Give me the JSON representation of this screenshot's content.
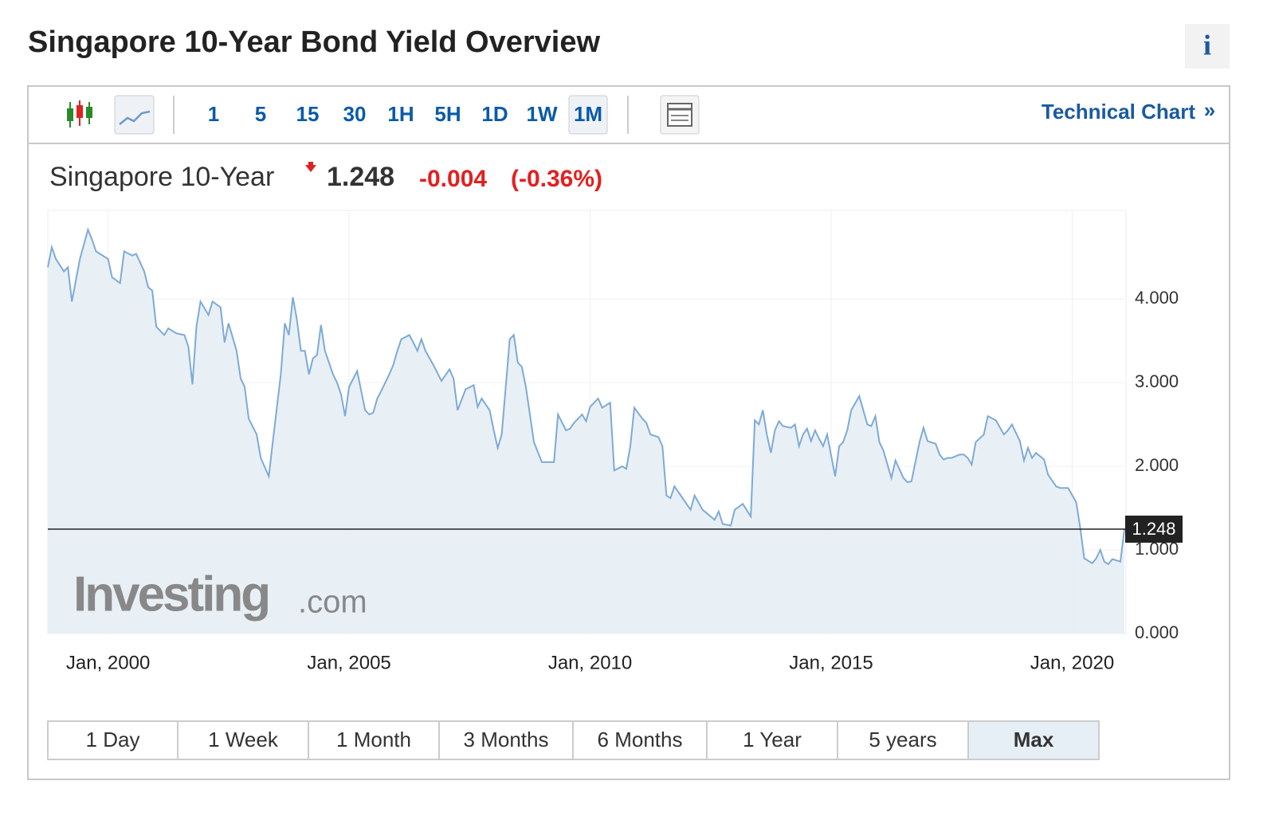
{
  "title": "Singapore 10-Year Bond Yield Overview",
  "info_button": "i",
  "toolbar": {
    "intervals": [
      "1",
      "5",
      "15",
      "30",
      "1H",
      "5H",
      "1D",
      "1W",
      "1M"
    ],
    "active": "1M",
    "link": "Technical Chart",
    "link_arrow": "»"
  },
  "quote": {
    "name": "Singapore 10-Year",
    "price": 1.248,
    "change": -0.004,
    "change_percent": "(-0.36%)"
  },
  "watermark": [
    "Investing",
    ".com"
  ],
  "ranges": {
    "buttons": [
      "1 Day",
      "1 Week",
      "1 Month",
      "3 Months",
      "6 Months",
      "1 Year",
      "5 years",
      "Max"
    ],
    "active": "Max"
  },
  "chart_data": {
    "type": "area",
    "color": "#7eaad6",
    "fill": "#e6eef5",
    "grid": true,
    "x": [
      "1998-10",
      "1998-11",
      "1998-12",
      "1999-02",
      "1999-03",
      "1999-04",
      "1999-06",
      "1999-08",
      "1999-09",
      "1999-10",
      "1999-11",
      "2000-01",
      "2000-02",
      "2000-04",
      "2000-05",
      "2000-07",
      "2000-08",
      "2000-10",
      "2000-11",
      "2000-12",
      "2001-01",
      "2001-03",
      "2001-04",
      "2001-06",
      "2001-08",
      "2001-09",
      "2001-10",
      "2001-11",
      "2001-12",
      "2002-02",
      "2002-03",
      "2002-05",
      "2002-06",
      "2002-07",
      "2002-09",
      "2002-10",
      "2002-11",
      "2002-12",
      "2003-02",
      "2003-03",
      "2003-05",
      "2003-06",
      "2003-08",
      "2003-09",
      "2003-10",
      "2003-11",
      "2003-12",
      "2004-01",
      "2004-02",
      "2004-03",
      "2004-04",
      "2004-05",
      "2004-06",
      "2004-07",
      "2004-09",
      "2004-10",
      "2004-11",
      "2004-12",
      "2005-01",
      "2005-03",
      "2005-05",
      "2005-06",
      "2005-07",
      "2005-08",
      "2005-09",
      "2005-11",
      "2005-12",
      "2006-01",
      "2006-02",
      "2006-04",
      "2006-05",
      "2006-06",
      "2006-07",
      "2006-08",
      "2006-10",
      "2006-12",
      "2007-02",
      "2007-03",
      "2007-04",
      "2007-06",
      "2007-08",
      "2007-09",
      "2007-10",
      "2007-12",
      "2008-01",
      "2008-02",
      "2008-03",
      "2008-05",
      "2008-06",
      "2008-07",
      "2008-08",
      "2008-09",
      "2008-11",
      "2009-01",
      "2009-02",
      "2009-04",
      "2009-05",
      "2009-07",
      "2009-08",
      "2009-09",
      "2009-11",
      "2009-12",
      "2010-01",
      "2010-03",
      "2010-04",
      "2010-06",
      "2010-07",
      "2010-09",
      "2010-10",
      "2010-11",
      "2010-12",
      "2011-02",
      "2011-03",
      "2011-04",
      "2011-06",
      "2011-07",
      "2011-08",
      "2011-09",
      "2011-10",
      "2011-12",
      "2012-02",
      "2012-03",
      "2012-05",
      "2012-07",
      "2012-08",
      "2012-09",
      "2012-10",
      "2012-12",
      "2013-01",
      "2013-03",
      "2013-05",
      "2013-06",
      "2013-07",
      "2013-08",
      "2013-09",
      "2013-10",
      "2013-11",
      "2013-12",
      "2014-01",
      "2014-03",
      "2014-04",
      "2014-05",
      "2014-06",
      "2014-07",
      "2014-08",
      "2014-09",
      "2014-10",
      "2014-11",
      "2014-12",
      "2015-02",
      "2015-03",
      "2015-04",
      "2015-05",
      "2015-06",
      "2015-08",
      "2015-10",
      "2015-11",
      "2015-12",
      "2016-01",
      "2016-02",
      "2016-04",
      "2016-05",
      "2016-07",
      "2016-08",
      "2016-09",
      "2016-11",
      "2016-12",
      "2017-01",
      "2017-03",
      "2017-04",
      "2017-05",
      "2017-06",
      "2017-07",
      "2017-09",
      "2017-10",
      "2017-11",
      "2017-12",
      "2018-01",
      "2018-03",
      "2018-04",
      "2018-06",
      "2018-08",
      "2018-09",
      "2018-10",
      "2018-12",
      "2019-01",
      "2019-02",
      "2019-03",
      "2019-04",
      "2019-06",
      "2019-07",
      "2019-09",
      "2019-10",
      "2019-12",
      "2020-02",
      "2020-03",
      "2020-04",
      "2020-06",
      "2020-07",
      "2020-08",
      "2020-09",
      "2020-10",
      "2020-11",
      "2021-01",
      "2021-02"
    ],
    "values": [
      4.38,
      4.62,
      4.48,
      4.33,
      4.38,
      3.97,
      4.48,
      4.83,
      4.71,
      4.57,
      4.54,
      4.48,
      4.26,
      4.19,
      4.57,
      4.52,
      4.54,
      4.33,
      4.14,
      4.1,
      3.67,
      3.57,
      3.65,
      3.59,
      3.57,
      3.43,
      2.98,
      3.67,
      3.97,
      3.81,
      3.97,
      3.9,
      3.48,
      3.71,
      3.38,
      3.05,
      2.95,
      2.57,
      2.38,
      2.1,
      1.88,
      2.29,
      3.1,
      3.71,
      3.57,
      4.02,
      3.76,
      3.38,
      3.38,
      3.1,
      3.29,
      3.33,
      3.69,
      3.38,
      3.1,
      3.0,
      2.86,
      2.6,
      2.95,
      3.14,
      2.67,
      2.62,
      2.64,
      2.81,
      2.9,
      3.1,
      3.21,
      3.38,
      3.52,
      3.57,
      3.48,
      3.38,
      3.52,
      3.38,
      3.21,
      3.02,
      3.16,
      3.05,
      2.67,
      2.92,
      2.97,
      2.71,
      2.81,
      2.67,
      2.43,
      2.22,
      2.38,
      3.52,
      3.57,
      3.24,
      3.19,
      2.95,
      2.29,
      2.05,
      2.05,
      2.05,
      2.62,
      2.43,
      2.45,
      2.52,
      2.62,
      2.54,
      2.71,
      2.81,
      2.7,
      2.76,
      1.95,
      2.0,
      1.97,
      2.24,
      2.7,
      2.57,
      2.52,
      2.38,
      2.35,
      2.24,
      1.65,
      1.62,
      1.76,
      1.62,
      1.48,
      1.65,
      1.48,
      1.4,
      1.36,
      1.46,
      1.31,
      1.29,
      1.48,
      1.55,
      1.4,
      2.55,
      2.5,
      2.67,
      2.38,
      2.16,
      2.43,
      2.54,
      2.48,
      2.46,
      2.5,
      2.24,
      2.38,
      2.45,
      2.3,
      2.43,
      2.33,
      2.24,
      2.38,
      1.88,
      2.24,
      2.29,
      2.43,
      2.67,
      2.84,
      2.5,
      2.48,
      2.6,
      2.29,
      2.19,
      1.86,
      2.07,
      1.86,
      1.81,
      1.82,
      2.29,
      2.46,
      2.3,
      2.27,
      2.14,
      2.08,
      2.1,
      2.1,
      2.14,
      2.14,
      2.1,
      2.02,
      2.29,
      2.38,
      2.6,
      2.55,
      2.38,
      2.43,
      2.5,
      2.3,
      2.07,
      2.22,
      2.1,
      2.16,
      2.08,
      1.9,
      1.76,
      1.74,
      1.74,
      1.57,
      1.27,
      0.9,
      0.84,
      0.9,
      1.0,
      0.86,
      0.83,
      0.89,
      0.86,
      1.248
    ],
    "xlim": [
      "1998-10",
      "2021-02"
    ],
    "xticks": [
      {
        "value": "2000-01",
        "label": "Jan, 2000"
      },
      {
        "value": "2005-01",
        "label": "Jan, 2005"
      },
      {
        "value": "2010-01",
        "label": "Jan, 2010"
      },
      {
        "value": "2015-01",
        "label": "Jan, 2015"
      },
      {
        "value": "2020-01",
        "label": "Jan, 2020"
      }
    ],
    "ylim": [
      0,
      5.06
    ],
    "yticks": [
      {
        "value": 0,
        "label": "0.000"
      },
      {
        "value": 1,
        "label": "1.000"
      },
      {
        "value": 2,
        "label": "2.000"
      },
      {
        "value": 3,
        "label": "3.000"
      },
      {
        "value": 4,
        "label": "4.000"
      }
    ]
  }
}
